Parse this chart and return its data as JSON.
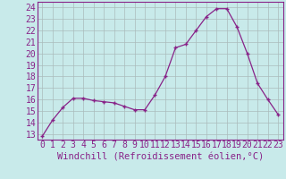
{
  "x": [
    0,
    1,
    2,
    3,
    4,
    5,
    6,
    7,
    8,
    9,
    10,
    11,
    12,
    13,
    14,
    15,
    16,
    17,
    18,
    19,
    20,
    21,
    22,
    23
  ],
  "y": [
    12.8,
    14.2,
    15.3,
    16.1,
    16.1,
    15.9,
    15.8,
    15.7,
    15.4,
    15.1,
    15.1,
    16.4,
    18.0,
    20.5,
    20.8,
    22.0,
    23.2,
    23.9,
    23.9,
    22.3,
    20.0,
    17.4,
    16.0,
    14.7
  ],
  "title": "Windchill (Refroidissement éolien,°C)",
  "line_color": "#882288",
  "bg_color": "#c8eaea",
  "grid_color": "#aabbbb",
  "xlim": [
    -0.5,
    23.5
  ],
  "ylim": [
    12.5,
    24.5
  ],
  "yticks": [
    13,
    14,
    15,
    16,
    17,
    18,
    19,
    20,
    21,
    22,
    23,
    24
  ],
  "xtick_labels": [
    "0",
    "1",
    "2",
    "3",
    "4",
    "5",
    "6",
    "7",
    "8",
    "9",
    "10",
    "11",
    "12",
    "13",
    "14",
    "15",
    "16",
    "17",
    "18",
    "19",
    "20",
    "21",
    "22",
    "23"
  ],
  "ytick_labels": [
    "13",
    "14",
    "15",
    "16",
    "17",
    "18",
    "19",
    "20",
    "21",
    "22",
    "23",
    "24"
  ],
  "tick_fontsize": 7,
  "xlabel_fontsize": 7.5
}
